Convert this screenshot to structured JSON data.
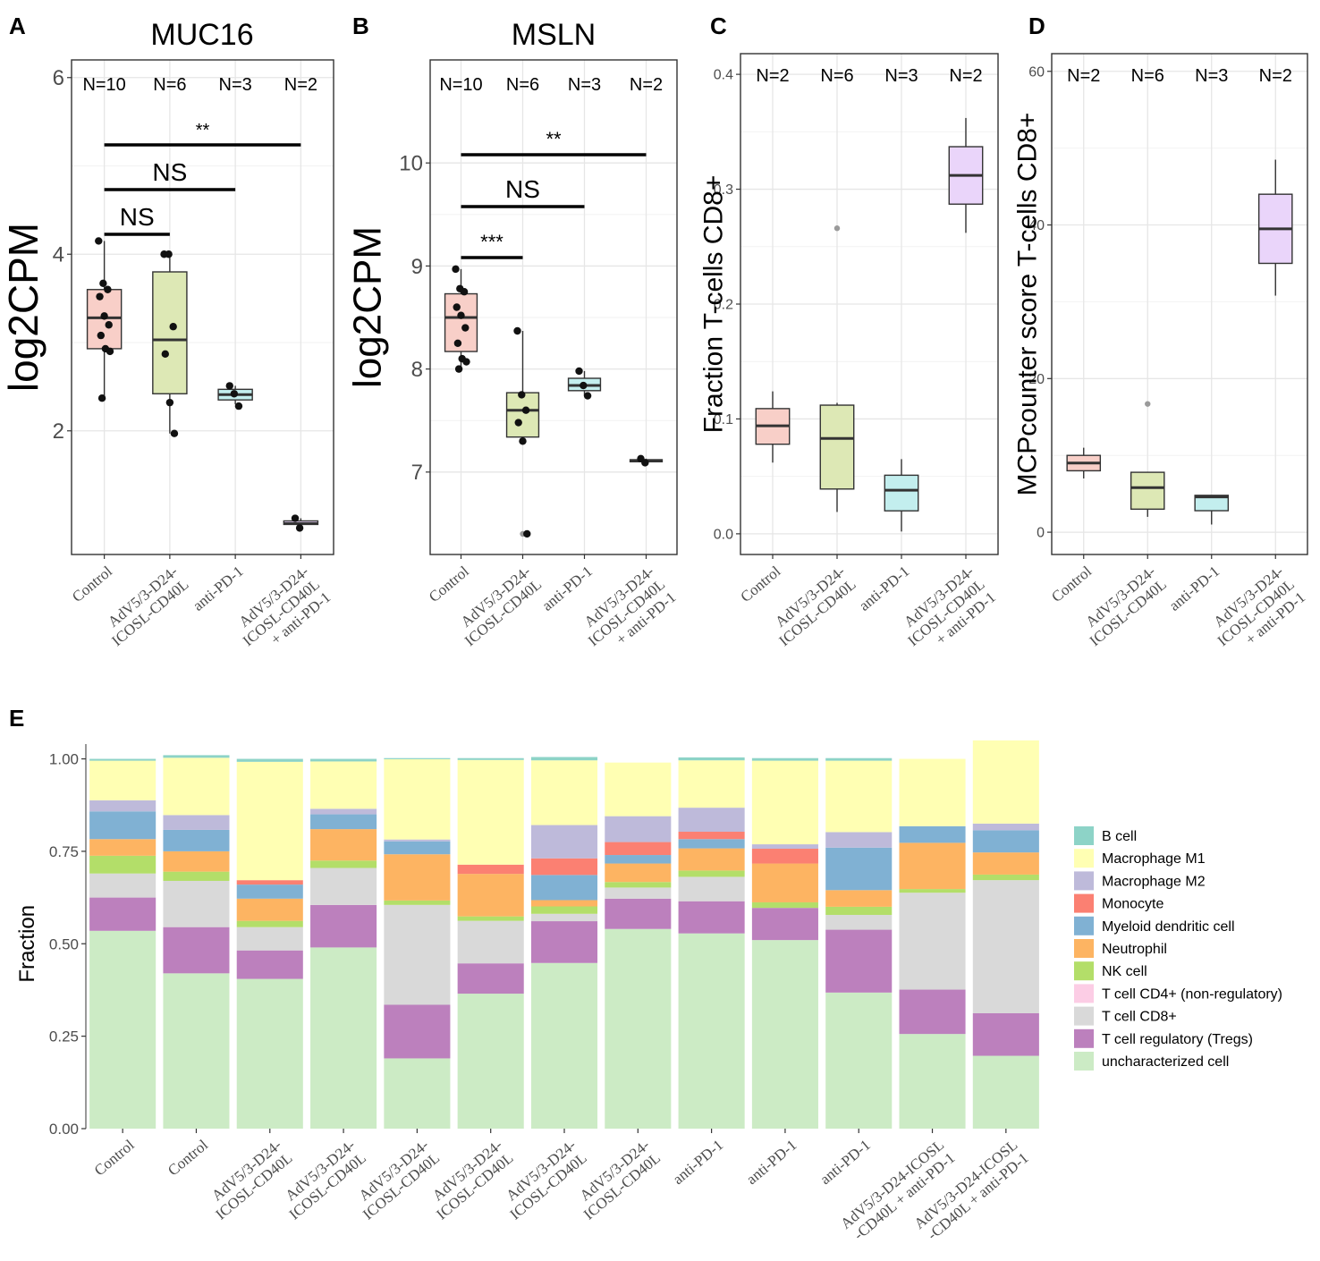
{
  "panels": {
    "A": "A",
    "B": "B",
    "C": "C",
    "D": "D",
    "E": "E"
  },
  "chart_data": [
    {
      "id": "A",
      "type": "boxplot",
      "title": "MUC16",
      "ylabel": "log2CPM",
      "xlabel": "",
      "ylim": [
        0.6,
        6.2
      ],
      "yticks": [
        2,
        4,
        6
      ],
      "categories": [
        [
          "Control"
        ],
        [
          "AdV5/3-D24-",
          "ICOSL-CD40L"
        ],
        [
          "anti-PD-1"
        ],
        [
          "AdV5/3-D24-",
          "ICOSL-CD40L",
          "+ anti-PD-1"
        ]
      ],
      "n_labels": [
        "N=10",
        "N=6",
        "N=3",
        "N=2"
      ],
      "colors": [
        "#f8cfc8",
        "#dde8b5",
        "#c3eeee",
        "#ead5fa"
      ],
      "boxes": [
        {
          "min": 2.37,
          "q1": 2.93,
          "median": 3.28,
          "q3": 3.6,
          "max": 4.15
        },
        {
          "min": 1.97,
          "q1": 2.42,
          "median": 3.03,
          "q3": 3.8,
          "max": 4.0
        },
        {
          "min": 2.3,
          "q1": 2.35,
          "median": 2.41,
          "q3": 2.47,
          "max": 2.51
        },
        {
          "min": 0.9,
          "q1": 0.94,
          "median": 0.95,
          "q3": 0.98,
          "max": 1.01
        }
      ],
      "points": [
        [
          4.15,
          3.67,
          3.6,
          3.52,
          3.3,
          3.2,
          3.08,
          2.93,
          2.9,
          2.37
        ],
        [
          4.0,
          4.0,
          3.18,
          2.87,
          2.32,
          1.97
        ],
        [
          2.51,
          2.42,
          2.28
        ],
        [
          1.01,
          0.9
        ]
      ],
      "comparisons": [
        {
          "from": 0,
          "to": 1,
          "label": "NS"
        },
        {
          "from": 0,
          "to": 2,
          "label": "NS"
        },
        {
          "from": 0,
          "to": 3,
          "label": "**"
        }
      ]
    },
    {
      "id": "B",
      "type": "boxplot",
      "title": "MSLN",
      "ylabel": "log2CPM",
      "xlabel": "",
      "ylim": [
        6.2,
        11.0
      ],
      "yticks": [
        7,
        8,
        9,
        10
      ],
      "categories": [
        [
          "Control"
        ],
        [
          "AdV5/3-D24-",
          "ICOSL-CD40L"
        ],
        [
          "anti-PD-1"
        ],
        [
          "AdV5/3-D24-",
          "ICOSL-CD40L",
          "+ anti-PD-1"
        ]
      ],
      "n_labels": [
        "N=10",
        "N=6",
        "N=3",
        "N=2"
      ],
      "colors": [
        "#f8cfc8",
        "#dde8b5",
        "#c3eeee",
        "#ead5fa"
      ],
      "boxes": [
        {
          "min": 8.0,
          "q1": 8.17,
          "median": 8.5,
          "q3": 8.73,
          "max": 8.97
        },
        {
          "min": 7.3,
          "q1": 7.34,
          "median": 7.6,
          "q3": 7.77,
          "max": 8.37
        },
        {
          "min": 7.74,
          "q1": 7.79,
          "median": 7.84,
          "q3": 7.91,
          "max": 7.98
        },
        {
          "min": 7.09,
          "q1": 7.1,
          "median": 7.11,
          "q3": 7.12,
          "max": 7.13
        }
      ],
      "outliers": [
        [],
        [
          6.4
        ],
        [],
        []
      ],
      "points": [
        [
          8.97,
          8.78,
          8.75,
          8.6,
          8.52,
          8.4,
          8.25,
          8.1,
          8.07,
          8.0
        ],
        [
          8.37,
          7.75,
          7.6,
          7.48,
          7.3,
          6.4
        ],
        [
          7.98,
          7.84,
          7.74
        ],
        [
          7.13,
          7.09
        ]
      ],
      "comparisons": [
        {
          "from": 0,
          "to": 1,
          "label": "***"
        },
        {
          "from": 0,
          "to": 2,
          "label": "NS"
        },
        {
          "from": 0,
          "to": 3,
          "label": "**"
        }
      ]
    },
    {
      "id": "C",
      "type": "boxplot",
      "title": "",
      "ylabel": "Fraction T-cells CD8+",
      "xlabel": "",
      "ylim": [
        -0.018,
        0.418
      ],
      "yticks": [
        0.0,
        0.1,
        0.2,
        0.3,
        0.4
      ],
      "ytick_labels": [
        "0.0",
        "0.1",
        "0.2",
        "0.3",
        "0.4"
      ],
      "categories": [
        [
          "Control"
        ],
        [
          "AdV5/3-D24-",
          "ICOSL-CD40L"
        ],
        [
          "anti-PD-1"
        ],
        [
          "AdV5/3-D24-",
          "ICOSL-CD40L",
          "+ anti-PD-1"
        ]
      ],
      "n_labels": [
        "N=2",
        "N=6",
        "N=3",
        "N=2"
      ],
      "colors": [
        "#f8cfc8",
        "#dde8b5",
        "#c3eeee",
        "#ead5fa"
      ],
      "boxes": [
        {
          "min": 0.062,
          "q1": 0.078,
          "median": 0.094,
          "q3": 0.109,
          "max": 0.124
        },
        {
          "min": 0.019,
          "q1": 0.039,
          "median": 0.083,
          "q3": 0.112,
          "max": 0.114
        },
        {
          "min": 0.002,
          "q1": 0.02,
          "median": 0.038,
          "q3": 0.051,
          "max": 0.065
        },
        {
          "min": 0.262,
          "q1": 0.287,
          "median": 0.312,
          "q3": 0.337,
          "max": 0.362
        }
      ],
      "outliers": [
        [],
        [
          0.266
        ],
        [],
        []
      ]
    },
    {
      "id": "D",
      "type": "boxplot",
      "title": "",
      "ylabel": "MCPcounter score T-cells CD8+",
      "xlabel": "",
      "ylim": [
        -2.9,
        62.3
      ],
      "yticks": [
        0,
        20,
        40,
        60
      ],
      "categories": [
        [
          "Control"
        ],
        [
          "AdV5/3-D24-",
          "ICOSL-CD40L"
        ],
        [
          "anti-PD-1"
        ],
        [
          "AdV5/3-D24-",
          "ICOSL-CD40L",
          "+ anti-PD-1"
        ]
      ],
      "n_labels": [
        "N=2",
        "N=6",
        "N=3",
        "N=2"
      ],
      "colors": [
        "#f8cfc8",
        "#dde8b5",
        "#c3eeee",
        "#ead5fa"
      ],
      "boxes": [
        {
          "min": 7.0,
          "q1": 8.0,
          "median": 9.0,
          "q3": 10.0,
          "max": 11.0
        },
        {
          "min": 2.0,
          "q1": 3.0,
          "median": 5.8,
          "q3": 7.8,
          "max": 7.8
        },
        {
          "min": 1.0,
          "q1": 2.8,
          "median": 4.6,
          "q3": 4.8,
          "max": 4.8
        },
        {
          "min": 30.8,
          "q1": 35.0,
          "median": 39.5,
          "q3": 44.0,
          "max": 48.5
        }
      ],
      "outliers": [
        [],
        [
          16.7
        ],
        [],
        []
      ]
    },
    {
      "id": "E",
      "type": "stacked_bar",
      "title": "",
      "ylabel": "Fraction",
      "xlabel": "",
      "ylim": [
        0,
        1.0
      ],
      "yticks": [
        "0.00",
        "0.25",
        "0.50",
        "0.75",
        "1.00"
      ],
      "categories": [
        [
          "Control"
        ],
        [
          "Control"
        ],
        [
          "AdV5/3-D24-",
          "ICOSL-CD40L"
        ],
        [
          "AdV5/3-D24-",
          "ICOSL-CD40L"
        ],
        [
          "AdV5/3-D24-",
          "ICOSL-CD40L"
        ],
        [
          "AdV5/3-D24-",
          "ICOSL-CD40L"
        ],
        [
          "AdV5/3-D24-",
          "ICOSL-CD40L"
        ],
        [
          "AdV5/3-D24-",
          "ICOSL-CD40L"
        ],
        [
          "anti-PD-1"
        ],
        [
          "anti-PD-1"
        ],
        [
          "anti-PD-1"
        ],
        [
          "AdV5/3-D24-ICOSL",
          "-CD40L + anti-PD-1"
        ],
        [
          "AdV5/3-D24-ICOSL",
          "-CD40L + anti-PD-1"
        ]
      ],
      "legend": [
        {
          "name": "B cell",
          "color": "#8dd3c7"
        },
        {
          "name": "Macrophage M1",
          "color": "#ffffb3"
        },
        {
          "name": "Macrophage M2",
          "color": "#bebada"
        },
        {
          "name": "Monocyte",
          "color": "#fb8072"
        },
        {
          "name": "Myeloid dendritic cell",
          "color": "#80b1d3"
        },
        {
          "name": "Neutrophil",
          "color": "#fdb462"
        },
        {
          "name": "NK cell",
          "color": "#b3de69"
        },
        {
          "name": "T cell CD4+ (non-regulatory)",
          "color": "#fccde5"
        },
        {
          "name": "T cell CD8+",
          "color": "#d9d9d9"
        },
        {
          "name": "T cell regulatory (Tregs)",
          "color": "#bc80bd"
        },
        {
          "name": "uncharacterized cell",
          "color": "#ccebc5"
        }
      ],
      "stack_order": [
        "uncharacterized cell",
        "T cell regulatory (Tregs)",
        "T cell CD8+",
        "T cell CD4+ (non-regulatory)",
        "NK cell",
        "Neutrophil",
        "Myeloid dendritic cell",
        "Monocyte",
        "Macrophage M2",
        "Macrophage M1",
        "B cell"
      ],
      "series": [
        {
          "name": "uncharacterized cell",
          "values": [
            0.535,
            0.42,
            0.405,
            0.49,
            0.19,
            0.365,
            0.448,
            0.54,
            0.528,
            0.51,
            0.368,
            0.256,
            0.197
          ]
        },
        {
          "name": "T cell regulatory (Tregs)",
          "values": [
            0.09,
            0.125,
            0.077,
            0.115,
            0.145,
            0.082,
            0.113,
            0.082,
            0.087,
            0.087,
            0.17,
            0.12,
            0.115
          ]
        },
        {
          "name": "T cell CD8+",
          "values": [
            0.065,
            0.125,
            0.063,
            0.1,
            0.27,
            0.115,
            0.02,
            0.03,
            0.066,
            0.0,
            0.04,
            0.262,
            0.36
          ]
        },
        {
          "name": "T cell CD4+ (non-regulatory)",
          "values": [
            0,
            0,
            0,
            0,
            0,
            0,
            0,
            0,
            0,
            0,
            0,
            0,
            0
          ]
        },
        {
          "name": "NK cell",
          "values": [
            0.048,
            0.025,
            0.017,
            0.02,
            0.012,
            0.012,
            0.02,
            0.015,
            0.017,
            0.015,
            0.022,
            0.01,
            0.015
          ]
        },
        {
          "name": "Neutrophil",
          "values": [
            0.045,
            0.055,
            0.06,
            0.085,
            0.125,
            0.115,
            0.017,
            0.05,
            0.06,
            0.105,
            0.045,
            0.125,
            0.06
          ]
        },
        {
          "name": "Myeloid dendritic cell",
          "values": [
            0.075,
            0.058,
            0.038,
            0.04,
            0.035,
            0.0,
            0.068,
            0.023,
            0.025,
            0.0,
            0.115,
            0.045,
            0.06
          ]
        },
        {
          "name": "Monocyte",
          "values": [
            0.0,
            0.0,
            0.012,
            0.0,
            0.0,
            0.025,
            0.045,
            0.035,
            0.02,
            0.04,
            0.0,
            0.0,
            0.0
          ]
        },
        {
          "name": "Macrophage M2",
          "values": [
            0.03,
            0.04,
            0.0,
            0.015,
            0.005,
            0.0,
            0.09,
            0.07,
            0.065,
            0.012,
            0.042,
            0.0,
            0.018
          ]
        },
        {
          "name": "Macrophage M1",
          "values": [
            0.107,
            0.155,
            0.32,
            0.128,
            0.217,
            0.283,
            0.175,
            0.145,
            0.128,
            0.226,
            0.193,
            0.182,
            0.225
          ]
        },
        {
          "name": "B cell",
          "values": [
            0.005,
            0.007,
            0.008,
            0.007,
            0.003,
            0.005,
            0.009,
            0.0,
            0.008,
            0.007,
            0.007,
            0.0,
            0.0
          ]
        }
      ]
    }
  ]
}
